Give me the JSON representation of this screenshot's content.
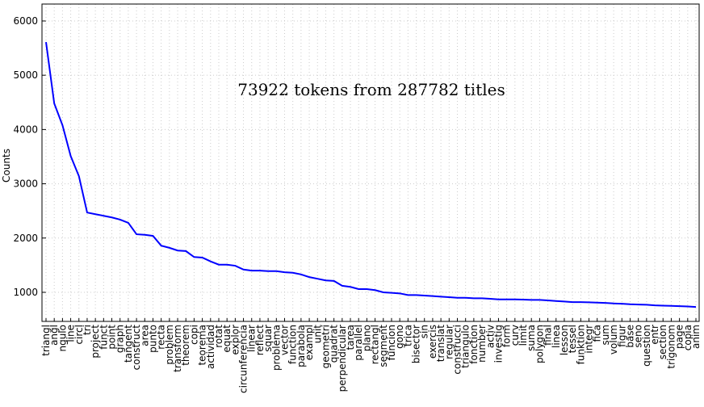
{
  "chart_data": {
    "type": "line",
    "annotation": "73922 tokens from 287782 titles",
    "ylabel": "Counts",
    "categories": [
      "triangl",
      "angl",
      "ngulo",
      "line",
      "circl",
      "tri",
      "project",
      "funct",
      "point",
      "graph",
      "tangent",
      "construct",
      "area",
      "punto",
      "recta",
      "problem",
      "transform",
      "theorem",
      "copi",
      "teorema",
      "actividad",
      "rotat",
      "equat",
      "explor",
      "circunferencia",
      "linear",
      "reflect",
      "squar",
      "problema",
      "vector",
      "function",
      "parabola",
      "exampl",
      "unit",
      "geometri",
      "quadrat",
      "perpendicular",
      "tarea",
      "parallel",
      "plano",
      "rectangl",
      "segment",
      "funcion",
      "gono",
      "trica",
      "bisector",
      "sin",
      "exercis",
      "translat",
      "regular",
      "construcci",
      "triangulo",
      "fonction",
      "number",
      "activ",
      "investig",
      "form",
      "curv",
      "limit",
      "suma",
      "polygon",
      "final",
      "linea",
      "lesson",
      "tessel",
      "funktion",
      "integr",
      "fica",
      "sum",
      "volum",
      "figur",
      "base",
      "seno",
      "question",
      "entr",
      "section",
      "trigonom",
      "page",
      "copia",
      "anim"
    ],
    "series": [
      {
        "name": "counts",
        "color": "#0000ff",
        "values": [
          5610,
          4480,
          4080,
          3510,
          3140,
          2470,
          2440,
          2410,
          2380,
          2340,
          2280,
          2070,
          2060,
          2040,
          1860,
          1820,
          1770,
          1760,
          1650,
          1640,
          1570,
          1510,
          1510,
          1490,
          1420,
          1400,
          1400,
          1390,
          1390,
          1370,
          1360,
          1330,
          1280,
          1250,
          1220,
          1210,
          1120,
          1100,
          1060,
          1060,
          1040,
          1000,
          990,
          980,
          950,
          950,
          940,
          930,
          920,
          910,
          900,
          900,
          890,
          890,
          880,
          870,
          870,
          870,
          865,
          860,
          860,
          850,
          840,
          830,
          820,
          820,
          815,
          810,
          805,
          795,
          790,
          780,
          775,
          770,
          760,
          755,
          750,
          745,
          740,
          730
        ]
      }
    ],
    "ylim": [
      464,
      6312
    ],
    "yticks": [
      1000,
      2000,
      3000,
      4000,
      5000,
      6000
    ],
    "grid": true
  }
}
